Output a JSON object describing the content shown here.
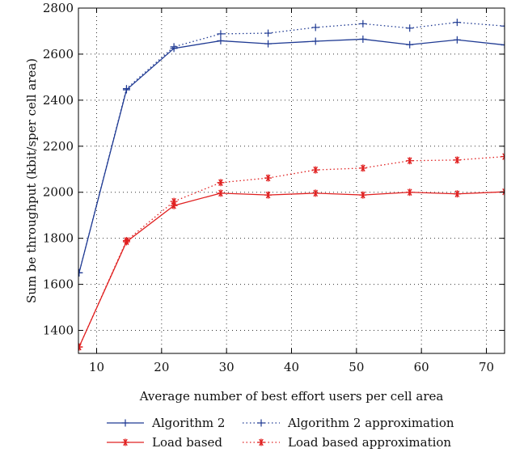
{
  "chart_data": {
    "type": "line",
    "xlabel": "Average number of best effort users per cell area",
    "ylabel": "Sum be throughput (kbit/sper cell area)",
    "xlim": [
      7.2,
      72.8
    ],
    "ylim": [
      1300,
      2800
    ],
    "x_ticks": [
      10,
      20,
      30,
      40,
      50,
      60,
      70
    ],
    "y_ticks": [
      1400,
      1600,
      1800,
      2000,
      2200,
      2400,
      2600,
      2800
    ],
    "grid": true,
    "legend_position": "bottom",
    "series": [
      {
        "name": "Algorithm 2",
        "color": "#1f3a93",
        "line_style": "solid",
        "marker": "plus",
        "x": [
          7.3,
          14.6,
          21.9,
          29.1,
          36.4,
          43.7,
          51.0,
          58.2,
          65.5,
          72.8
        ],
        "y": [
          1650,
          2445,
          2625,
          2658,
          2645,
          2656,
          2665,
          2641,
          2662,
          2640
        ]
      },
      {
        "name": "Algorithm 2 approximation",
        "color": "#1f3a93",
        "line_style": "dotted",
        "marker": "plus",
        "x": [
          7.3,
          14.6,
          21.9,
          29.1,
          36.4,
          43.7,
          51.0,
          58.2,
          65.5,
          72.8
        ],
        "y": [
          1650,
          2450,
          2632,
          2688,
          2691,
          2716,
          2732,
          2713,
          2738,
          2722
        ]
      },
      {
        "name": "Load based",
        "color": "#e02020",
        "line_style": "solid",
        "marker": "asterisk",
        "x": [
          7.3,
          14.6,
          21.9,
          29.1,
          36.4,
          43.7,
          51.0,
          58.2,
          65.5,
          72.8
        ],
        "y": [
          1328,
          1785,
          1942,
          1996,
          1988,
          1996,
          1988,
          2000,
          1993,
          2002
        ]
      },
      {
        "name": "Load based approximation",
        "color": "#e02020",
        "line_style": "dotted",
        "marker": "asterisk",
        "x": [
          7.3,
          14.6,
          21.9,
          29.1,
          36.4,
          43.7,
          51.0,
          58.2,
          65.5,
          72.8
        ],
        "y": [
          1328,
          1790,
          1960,
          2042,
          2062,
          2097,
          2105,
          2137,
          2140,
          2155
        ]
      }
    ]
  }
}
